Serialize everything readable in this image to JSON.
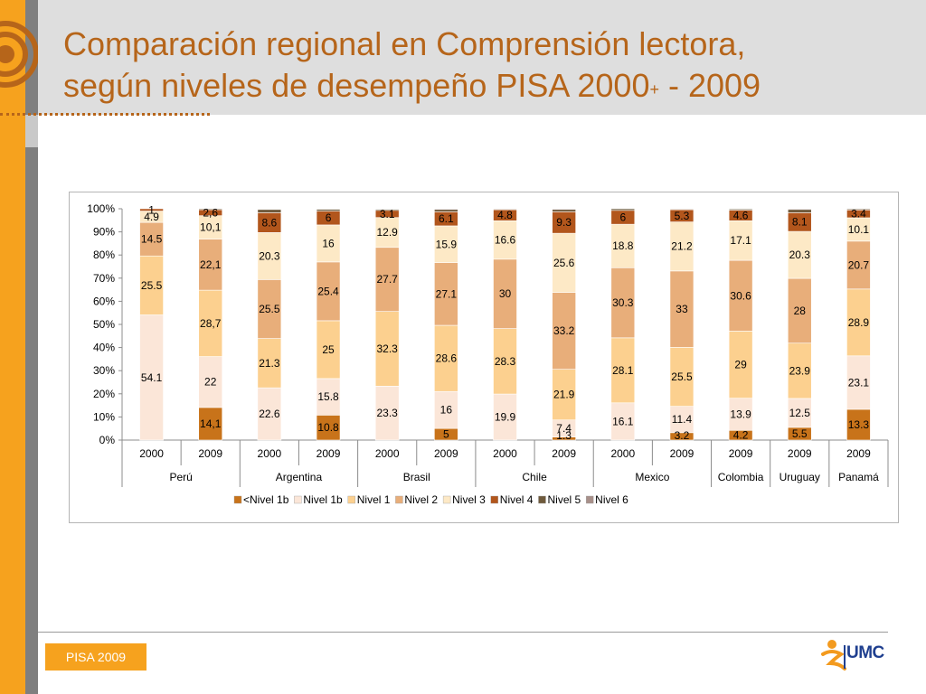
{
  "slide": {
    "title_line1": "Comparación regional en Comprensión lectora,",
    "title_line2_pre": "según niveles de desempeño PISA 2000",
    "title_sup": "+",
    "title_line2_post": " - 2009",
    "footer_badge": "PISA 2009",
    "logo_text": "UMC",
    "colors": {
      "accent_orange": "#f6a21e",
      "title_brown": "#b6651a",
      "header_gray": "#dedede",
      "side_gray": "#7f7f7f"
    }
  },
  "chart_data": {
    "type": "bar",
    "stacked": true,
    "percent": true,
    "y_ticks": [
      "0%",
      "10%",
      "20%",
      "30%",
      "40%",
      "50%",
      "60%",
      "70%",
      "80%",
      "90%",
      "100%"
    ],
    "ylim": [
      0,
      100
    ],
    "grid": false,
    "legend_position": "bottom",
    "categories": [
      {
        "year": "2000",
        "country": "Perú"
      },
      {
        "year": "2009",
        "country": "Perú"
      },
      {
        "year": "2000",
        "country": "Argentina"
      },
      {
        "year": "2009",
        "country": "Argentina"
      },
      {
        "year": "2000",
        "country": "Brasil"
      },
      {
        "year": "2009",
        "country": "Brasil"
      },
      {
        "year": "2000",
        "country": "Chile"
      },
      {
        "year": "2009",
        "country": "Chile"
      },
      {
        "year": "2000",
        "country": "Mexico"
      },
      {
        "year": "2009",
        "country": "Mexico"
      },
      {
        "year": "2009",
        "country": "Colombia"
      },
      {
        "year": "2009",
        "country": "Uruguay"
      },
      {
        "year": "2009",
        "country": "Panamá"
      }
    ],
    "country_groups": [
      {
        "name": "Perú",
        "count": 2
      },
      {
        "name": "Argentina",
        "count": 2
      },
      {
        "name": "Brasil",
        "count": 2
      },
      {
        "name": "Chile",
        "count": 2
      },
      {
        "name": "Mexico",
        "count": 2
      },
      {
        "name": "Colombia",
        "count": 1
      },
      {
        "name": "Uruguay",
        "count": 1
      },
      {
        "name": "Panamá",
        "count": 1
      }
    ],
    "series": [
      {
        "name": "<Nivel 1b",
        "color": "#c8731a",
        "values": [
          0,
          14.1,
          0,
          10.8,
          0,
          5,
          0,
          1.3,
          0,
          3.2,
          4.2,
          5.5,
          13.3
        ],
        "labels": [
          "",
          "14,1",
          "",
          "10.8",
          "",
          "5",
          "",
          "1.3",
          "",
          "3.2",
          "4.2",
          "5.5",
          "13.3"
        ]
      },
      {
        "name": "Nivel 1b",
        "color": "#fbe6d8",
        "values": [
          54.1,
          22,
          22.6,
          15.8,
          23.3,
          16,
          19.9,
          7.4,
          16.1,
          11.4,
          13.9,
          12.5,
          23.1
        ],
        "labels": [
          "54.1",
          "22",
          "22.6",
          "15.8",
          "23.3",
          "16",
          "19.9",
          "7.4",
          "16.1",
          "11.4",
          "13.9",
          "12.5",
          "23.1"
        ]
      },
      {
        "name": "Nivel 1",
        "color": "#fcd08f",
        "values": [
          25.5,
          28.7,
          21.3,
          25,
          32.3,
          28.6,
          28.3,
          21.9,
          28.1,
          25.5,
          29,
          23.9,
          28.9
        ],
        "labels": [
          "25.5",
          "28,7",
          "21.3",
          "25",
          "32.3",
          "28.6",
          "28.3",
          "21.9",
          "28.1",
          "25.5",
          "29",
          "23.9",
          "28.9"
        ]
      },
      {
        "name": "Nivel 2",
        "color": "#e8ae7a",
        "values": [
          14.5,
          22.1,
          25.5,
          25.4,
          27.7,
          27.1,
          30,
          33.2,
          30.3,
          33,
          30.6,
          28,
          20.7
        ],
        "labels": [
          "14.5",
          "22,1",
          "25.5",
          "25.4",
          "27.7",
          "27.1",
          "30",
          "33.2",
          "30.3",
          "33",
          "30.6",
          "28",
          "20.7"
        ]
      },
      {
        "name": "Nivel 3",
        "color": "#fde9c6",
        "values": [
          4.9,
          10.1,
          20.3,
          16,
          12.9,
          15.9,
          16.6,
          25.6,
          18.8,
          21.2,
          17.1,
          20.3,
          10.1
        ],
        "labels": [
          "4.9",
          "10,1",
          "20.3",
          "16",
          "12.9",
          "15.9",
          "16.6",
          "25.6",
          "18.8",
          "21.2",
          "17.1",
          "20.3",
          "10.1"
        ]
      },
      {
        "name": "Nivel 4",
        "color": "#b2561c",
        "values": [
          1,
          2.6,
          8.6,
          6,
          3.1,
          6.1,
          4.8,
          9.3,
          6,
          5.3,
          4.6,
          8.1,
          3.4
        ],
        "labels": [
          "1",
          "2,6",
          "8.6",
          "6",
          "3.1",
          "6.1",
          "4.8",
          "9.3",
          "6",
          "5.3",
          "4.6",
          "8.1",
          "3.4"
        ]
      },
      {
        "name": "Nivel 5",
        "color": "#6f5a3c",
        "values": [
          0,
          0.4,
          1.4,
          0.8,
          0.5,
          1,
          0.3,
          1,
          0.7,
          0.3,
          0.5,
          1.4,
          0.4
        ],
        "labels": [
          "",
          "",
          "",
          "",
          "",
          "",
          "",
          "",
          "",
          "",
          "",
          "",
          ""
        ]
      },
      {
        "name": "Nivel 6",
        "color": "#a8908a",
        "values": [
          0,
          0,
          0.2,
          0.2,
          0.2,
          0.3,
          0.1,
          0.3,
          0,
          0.1,
          0.1,
          0.3,
          0
        ],
        "labels": [
          "",
          "",
          "",
          "",
          "",
          "",
          "",
          "",
          "",
          "",
          "",
          "",
          ""
        ]
      }
    ]
  }
}
